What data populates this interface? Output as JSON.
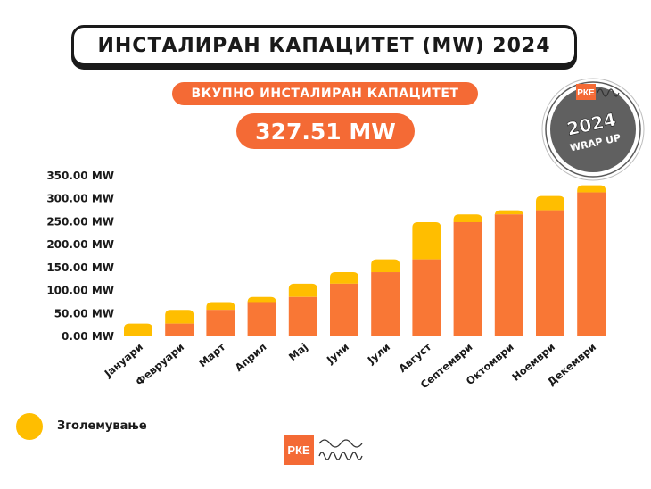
{
  "header": {
    "title": "ИНСТАЛИРАН КАПАЦИТЕТ (MW) 2024"
  },
  "subtitle": {
    "label": "ВКУПНО ИНСТАЛИРАН КАПАЦИТЕТ",
    "total": "327.51 MW"
  },
  "badge": {
    "brand": "РКЕ",
    "year": "2024",
    "text": "WRAP UP"
  },
  "legend": {
    "label": "Зголемување"
  },
  "logo": {
    "brand": "РКЕ"
  },
  "colors": {
    "base": "#f97735",
    "increase": "#ffbe00",
    "accent": "#f46a35"
  },
  "chart_data": {
    "type": "bar",
    "stacked": true,
    "categories": [
      "Јануари",
      "Февруари",
      "Март",
      "Април",
      "Мај",
      "Јуни",
      "Јули",
      "Август",
      "Септември",
      "Октомври",
      "Ноември",
      "Декември"
    ],
    "series": [
      {
        "name": "",
        "values": [
          0,
          26,
          56,
          73,
          84,
          113,
          138,
          166,
          247,
          264,
          273,
          312
        ]
      },
      {
        "name": "Зголемување",
        "values": [
          26,
          30,
          17,
          11,
          29,
          25,
          28,
          81,
          17,
          9,
          31,
          15.51
        ]
      }
    ],
    "ytick_labels": [
      "0.00 MW",
      "50.00 MW",
      "100.00 MW",
      "150.00 MW",
      "200.00 MW",
      "250.00 MW",
      "300.00 MW",
      "350.00 MW"
    ],
    "ylim": [
      0,
      350
    ],
    "grid": false,
    "legend_position": "bottom-left"
  }
}
